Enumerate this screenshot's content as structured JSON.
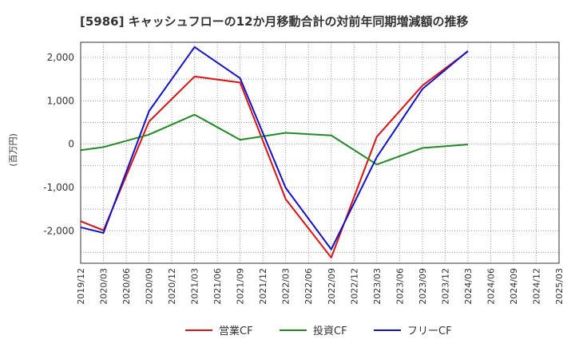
{
  "chart_data": {
    "type": "line",
    "title": "[5986]  キャッシュフローの12か月移動合計の対前年同期増減額の推移",
    "ylabel": "(百万円)",
    "xlabel": "",
    "ylim": [
      -2750,
      2350
    ],
    "yticks": [
      2000,
      1000,
      0,
      -1000,
      -2000
    ],
    "ytick_labels": [
      "2,000",
      "1,000",
      "0",
      "-1,000",
      "-2,000"
    ],
    "xtick_labels": [
      "2019/12",
      "2020/03",
      "2020/06",
      "2020/09",
      "2020/12",
      "2021/03",
      "2021/06",
      "2021/09",
      "2021/12",
      "2022/03",
      "2022/06",
      "2022/09",
      "2022/12",
      "2023/03",
      "2023/06",
      "2023/09",
      "2023/12",
      "2024/03",
      "2024/06",
      "2024/09",
      "2024/12",
      "2025/03"
    ],
    "grid": true,
    "legend_position": "bottom",
    "series": [
      {
        "name": "営業CF",
        "color": "#dd1111",
        "points": [
          [
            0,
            -1780
          ],
          [
            1,
            -1990
          ],
          [
            3,
            520
          ],
          [
            5,
            1560
          ],
          [
            7,
            1420
          ],
          [
            9,
            -1270
          ],
          [
            11,
            -2620
          ],
          [
            13,
            170
          ],
          [
            15,
            1350
          ],
          [
            17,
            2140
          ]
        ]
      },
      {
        "name": "投資CF",
        "color": "#228822",
        "points": [
          [
            0,
            -140
          ],
          [
            1,
            -70
          ],
          [
            3,
            220
          ],
          [
            5,
            680
          ],
          [
            7,
            100
          ],
          [
            9,
            260
          ],
          [
            11,
            200
          ],
          [
            13,
            -470
          ],
          [
            15,
            -90
          ],
          [
            17,
            -10
          ]
        ]
      },
      {
        "name": "フリーCF",
        "color": "#1111cc",
        "points": [
          [
            0,
            -1920
          ],
          [
            1,
            -2050
          ],
          [
            3,
            760
          ],
          [
            5,
            2240
          ],
          [
            7,
            1520
          ],
          [
            9,
            -1010
          ],
          [
            11,
            -2430
          ],
          [
            13,
            -300
          ],
          [
            15,
            1270
          ],
          [
            17,
            2150
          ]
        ]
      }
    ]
  }
}
